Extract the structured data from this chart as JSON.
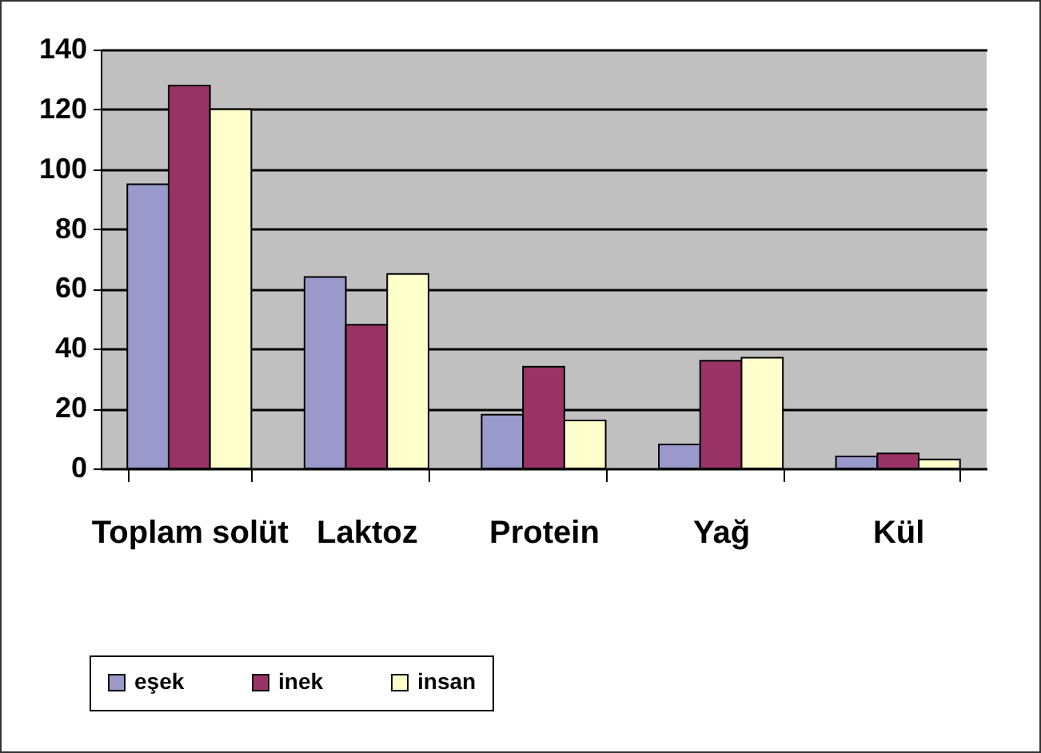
{
  "chart_data": {
    "type": "bar",
    "categories": [
      "Toplam solüt",
      "Laktoz",
      "Protein",
      "Yağ",
      "Kül"
    ],
    "series": [
      {
        "name": "eşek",
        "color": "#9999cc",
        "values": [
          95,
          64,
          18,
          8,
          4
        ]
      },
      {
        "name": "inek",
        "color": "#993366",
        "values": [
          128,
          48,
          34,
          36,
          5
        ]
      },
      {
        "name": "insan",
        "color": "#ffffcc",
        "values": [
          120,
          65,
          16,
          37,
          3
        ]
      }
    ],
    "ylim": [
      0,
      140
    ],
    "yticks": [
      0,
      20,
      40,
      60,
      80,
      100,
      120,
      140
    ],
    "grid": "y",
    "legend": "bottom left"
  }
}
